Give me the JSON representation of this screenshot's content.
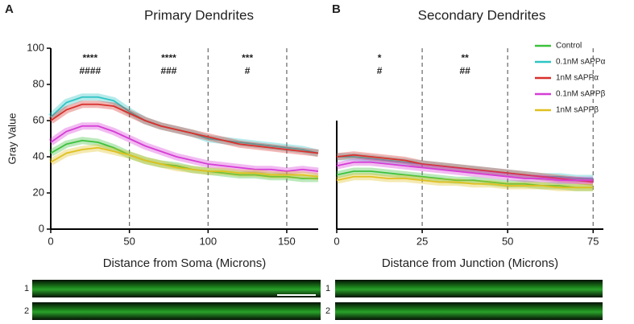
{
  "figure": {
    "panel_labels": [
      "A",
      "B"
    ],
    "strip_labels": [
      "1",
      "2",
      "1",
      "2"
    ]
  },
  "chart_data": [
    {
      "type": "line",
      "title": "Primary Dendrites",
      "x_label": "Distance from Soma (Microns)",
      "y_label": "Gray Value",
      "x": [
        0,
        10,
        20,
        30,
        40,
        50,
        60,
        70,
        80,
        90,
        100,
        110,
        120,
        130,
        140,
        150,
        160,
        170
      ],
      "xlim": [
        0,
        170
      ],
      "xticks": [
        0,
        50,
        100,
        150
      ],
      "ylim": [
        0,
        100
      ],
      "yticks": [
        0,
        20,
        40,
        60,
        80,
        100
      ],
      "vlines": [
        50,
        100,
        150
      ],
      "annotations": [
        [
          "****",
          "####"
        ],
        [
          "****",
          "###"
        ],
        [
          "***",
          "#"
        ]
      ],
      "legend": false,
      "series": [
        {
          "name": "Control",
          "color": "#3cc13c",
          "values": [
            42,
            47,
            49,
            48,
            45,
            41,
            38,
            36,
            35,
            33,
            32,
            31,
            30,
            30,
            29,
            29,
            28,
            28
          ]
        },
        {
          "name": "0.1nM sAPPα",
          "color": "#2ec4c4",
          "values": [
            62,
            70,
            73,
            73,
            71,
            65,
            60,
            57,
            55,
            53,
            50,
            49,
            48,
            47,
            46,
            45,
            44,
            42
          ]
        },
        {
          "name": "1nM sAPPα",
          "color": "#d8302c",
          "values": [
            60,
            66,
            69,
            69,
            68,
            64,
            60,
            57,
            55,
            53,
            51,
            49,
            47,
            46,
            45,
            44,
            43,
            42
          ]
        },
        {
          "name": "0.1nM sAPPβ",
          "color": "#d63cd6",
          "values": [
            48,
            54,
            57,
            57,
            54,
            50,
            46,
            43,
            40,
            38,
            36,
            35,
            34,
            33,
            33,
            32,
            33,
            32
          ]
        },
        {
          "name": "1nM sAPPβ",
          "color": "#e0c020",
          "values": [
            37,
            42,
            44,
            45,
            43,
            41,
            38,
            36,
            34,
            33,
            32,
            32,
            31,
            31,
            30,
            30,
            30,
            29
          ]
        }
      ]
    },
    {
      "type": "line",
      "title": "Secondary Dendrites",
      "x_label": "Distance from Junction (Microns)",
      "x": [
        0,
        5,
        10,
        15,
        20,
        25,
        30,
        35,
        40,
        45,
        50,
        55,
        60,
        65,
        70,
        75
      ],
      "xlim": [
        0,
        78
      ],
      "xticks": [
        0,
        25,
        50,
        75
      ],
      "ylim": [
        0,
        60
      ],
      "vlines": [
        25,
        50,
        75
      ],
      "annotations": [
        [
          "*",
          "#"
        ],
        [
          "**",
          "##"
        ]
      ],
      "legend": true,
      "series": [
        {
          "name": "Control",
          "color": "#3cc13c",
          "values": [
            30,
            32,
            32,
            31,
            30,
            29,
            28,
            27,
            27,
            26,
            25,
            25,
            24,
            24,
            23,
            23
          ]
        },
        {
          "name": "0.1nM sAPPα",
          "color": "#2ec4c4",
          "values": [
            40,
            40,
            39,
            38,
            37,
            36,
            35,
            34,
            33,
            32,
            31,
            30,
            29,
            29,
            28,
            28
          ]
        },
        {
          "name": "1nM sAPPα",
          "color": "#d8302c",
          "values": [
            40,
            41,
            40,
            39,
            38,
            36,
            35,
            34,
            33,
            32,
            31,
            30,
            29,
            28,
            27,
            26
          ]
        },
        {
          "name": "0.1nM sAPPβ",
          "color": "#d63cd6",
          "values": [
            35,
            37,
            37,
            36,
            35,
            34,
            33,
            32,
            31,
            30,
            29,
            28,
            28,
            27,
            27,
            27
          ]
        },
        {
          "name": "1nM sAPPβ",
          "color": "#e0c020",
          "values": [
            27,
            29,
            29,
            28,
            28,
            27,
            26,
            26,
            25,
            25,
            24,
            24,
            24,
            23,
            23,
            23
          ]
        }
      ]
    }
  ]
}
